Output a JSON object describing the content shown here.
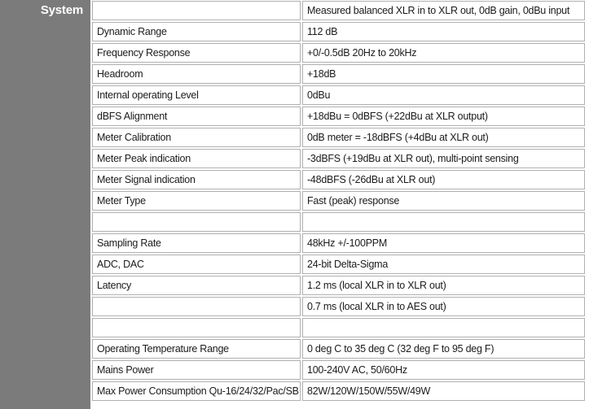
{
  "sidebar": {
    "label": "System",
    "background": "#7b7b7b",
    "text_color": "#ffffff"
  },
  "table": {
    "border_color": "#b0b0b0",
    "text_color": "#1b1b1b",
    "columns": [
      "parameter",
      "value"
    ],
    "rows": [
      {
        "parameter": "",
        "value": "Measured balanced XLR in to XLR out, 0dB gain, 0dBu input"
      },
      {
        "parameter": "Dynamic Range",
        "value": "112 dB"
      },
      {
        "parameter": "Frequency Response",
        "value": "+0/-0.5dB 20Hz to 20kHz"
      },
      {
        "parameter": "Headroom",
        "value": "+18dB"
      },
      {
        "parameter": "Internal operating Level",
        "value": "0dBu"
      },
      {
        "parameter": "dBFS Alignment",
        "value": "+18dBu = 0dBFS (+22dBu at XLR output)"
      },
      {
        "parameter": "Meter Calibration",
        "value": "0dB meter = -18dBFS (+4dBu at XLR out)"
      },
      {
        "parameter": "Meter Peak indication",
        "value": "-3dBFS (+19dBu at XLR out), multi-point sensing"
      },
      {
        "parameter": "Meter Signal indication",
        "value": "-48dBFS (-26dBu at XLR out)"
      },
      {
        "parameter": "Meter Type",
        "value": "Fast (peak) response"
      },
      {
        "parameter": "",
        "value": ""
      },
      {
        "parameter": "Sampling Rate",
        "value": "48kHz +/-100PPM"
      },
      {
        "parameter": "ADC, DAC",
        "value": "24-bit Delta-Sigma"
      },
      {
        "parameter": "Latency",
        "value": "1.2 ms (local XLR in to XLR out)"
      },
      {
        "parameter": "",
        "value": "0.7 ms (local XLR in to AES out)"
      },
      {
        "parameter": "",
        "value": ""
      },
      {
        "parameter": "Operating Temperature Range",
        "value": "0 deg C to 35 deg C  (32 deg F to 95 deg F)"
      },
      {
        "parameter": "Mains Power",
        "value": "100-240V AC, 50/60Hz"
      },
      {
        "parameter": "Max Power Consumption Qu-16/24/32/Pac/SB",
        "value": "82W/120W/150W/55W/49W"
      }
    ]
  }
}
